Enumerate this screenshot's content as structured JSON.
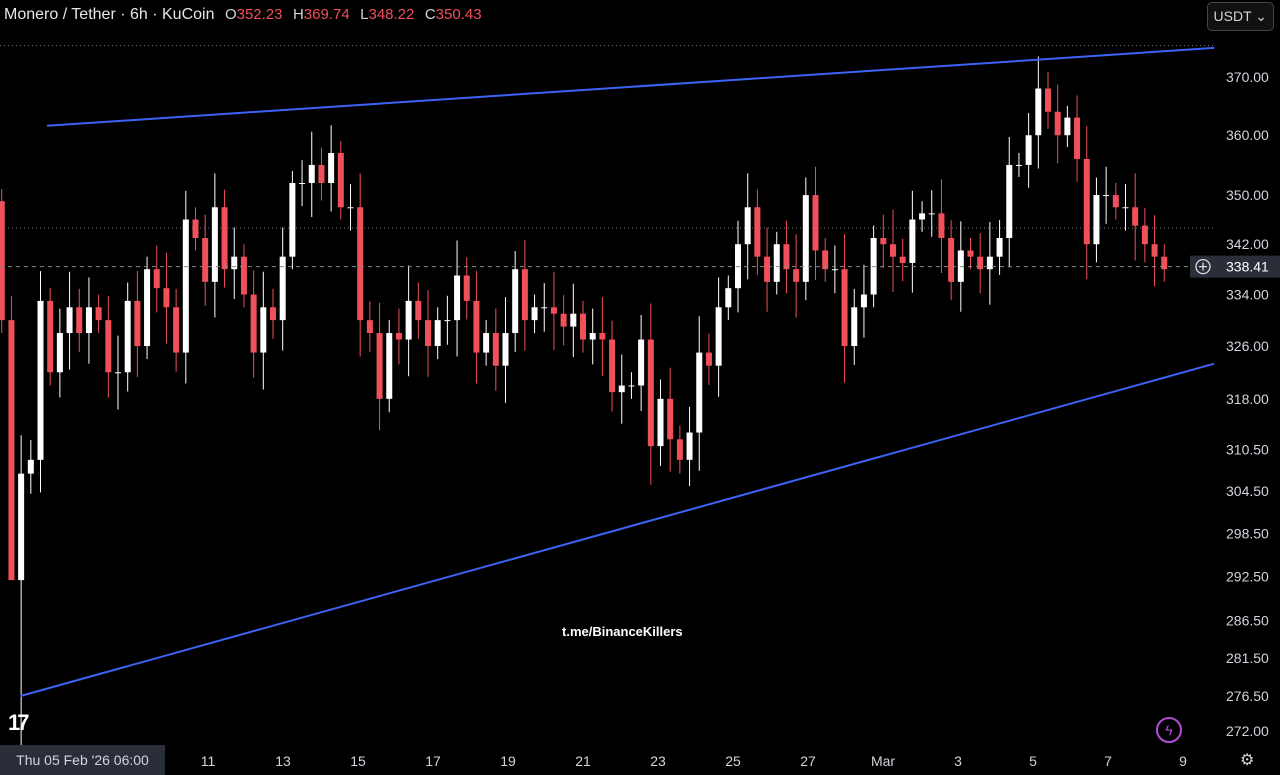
{
  "header": {
    "symbol": "Monero / Tether · 6h · KuCoin",
    "o_label": "O",
    "o": "352.23",
    "h_label": "H",
    "h": "369.74",
    "l_label": "L",
    "l": "348.22",
    "c_label": "C",
    "c": "350.43"
  },
  "currency_button": "USDT ⌄",
  "watermark": "t.me/BinanceKillers",
  "logo": "TV",
  "crosshair_date": "Thu 05 Feb '26  06:00",
  "colors": {
    "up": "#ffffff",
    "down": "#f0505a",
    "trendline": "#3d63f5",
    "price_label_bg": "#2a2e39"
  },
  "icons": {
    "bolt": "lightning-icon",
    "settings": "settings-icon",
    "add": "plus-circle-icon"
  },
  "chart_data": {
    "type": "candlestick",
    "interval": "6h",
    "start": "2026-02-05T12:00",
    "end": "2026-03-08T12:00",
    "first_open": 349,
    "close": [
      330,
      292,
      307,
      309,
      333,
      322,
      328,
      332,
      328,
      332,
      330,
      322,
      322,
      333,
      326,
      338,
      335,
      332,
      325,
      346,
      343,
      336,
      348,
      338,
      340,
      334,
      325,
      332,
      330,
      340,
      352,
      352,
      355,
      352,
      357,
      348,
      348,
      330,
      328,
      318,
      328,
      327,
      333,
      330,
      326,
      330,
      330,
      337,
      333,
      325,
      328,
      323,
      328,
      338,
      330,
      332,
      332,
      331,
      329,
      331,
      327,
      328,
      327,
      319,
      320,
      320,
      327,
      311,
      318,
      312,
      309,
      313,
      325,
      323,
      332,
      335,
      342,
      348,
      340,
      336,
      342,
      338,
      336,
      350,
      341,
      338,
      338,
      326,
      332,
      334,
      343,
      342,
      340,
      339,
      346,
      347,
      347,
      343,
      336,
      341,
      340,
      338,
      340,
      343,
      355,
      355,
      360,
      368,
      364,
      360,
      363,
      356,
      342,
      350,
      350,
      348,
      348,
      345,
      342,
      340,
      338
    ],
    "y_axis": {
      "scale": "log",
      "ticks": [
        "370.00",
        "360.00",
        "350.00",
        "342.00",
        "334.00",
        "326.00",
        "318.00",
        "310.50",
        "304.50",
        "298.50",
        "292.50",
        "286.50",
        "281.50",
        "276.50",
        "272.00"
      ]
    },
    "x_axis": {
      "ticks": [
        {
          "label": "11",
          "date": "2026-02-11"
        },
        {
          "label": "13",
          "date": "2026-02-13"
        },
        {
          "label": "15",
          "date": "2026-02-15"
        },
        {
          "label": "17",
          "date": "2026-02-17"
        },
        {
          "label": "19",
          "date": "2026-02-19"
        },
        {
          "label": "21",
          "date": "2026-02-21"
        },
        {
          "label": "23",
          "date": "2026-02-23"
        },
        {
          "label": "25",
          "date": "2026-02-25"
        },
        {
          "label": "27",
          "date": "2026-02-27"
        },
        {
          "label": "Mar",
          "date": "2026-03-01"
        },
        {
          "label": "3",
          "date": "2026-03-03"
        },
        {
          "label": "5",
          "date": "2026-03-05"
        },
        {
          "label": "7",
          "date": "2026-03-07"
        },
        {
          "label": "9",
          "date": "2026-03-09"
        }
      ]
    },
    "last_price": "338.41",
    "horizontal_lines": [
      375.5,
      344.6
    ],
    "trendlines": [
      {
        "from": {
          "date": "2026-02-06T17:00",
          "price": 361.6
        },
        "to": {
          "date": "2026-03-09T20:00",
          "price": 375.1
        }
      },
      {
        "from": {
          "date": "2026-02-06T00:00",
          "price": 276.5
        },
        "to": {
          "date": "2026-03-09T20:00",
          "price": 323.3
        }
      }
    ]
  }
}
